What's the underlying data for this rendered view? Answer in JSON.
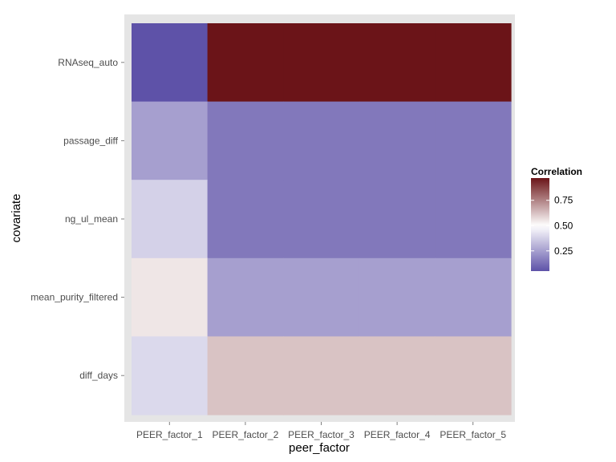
{
  "chart_data": {
    "type": "heatmap",
    "title": "",
    "xlabel": "peer_factor",
    "ylabel": "covariate",
    "x_categories": [
      "PEER_factor_1",
      "PEER_factor_2",
      "PEER_factor_3",
      "PEER_factor_4",
      "PEER_factor_5"
    ],
    "y_categories": [
      "RNAseq_auto",
      "passage_diff",
      "ng_ul_mean",
      "mean_purity_filtered",
      "diff_days"
    ],
    "values": [
      [
        0.05,
        0.97,
        0.97,
        0.97,
        0.97
      ],
      [
        0.25,
        0.15,
        0.15,
        0.15,
        0.15
      ],
      [
        0.38,
        0.15,
        0.15,
        0.15,
        0.15
      ],
      [
        0.55,
        0.25,
        0.25,
        0.25,
        0.25
      ],
      [
        0.4,
        0.62,
        0.62,
        0.62,
        0.62
      ]
    ],
    "legend": {
      "title": "Correlation",
      "ticks": [
        "0.25",
        "0.50",
        "0.75"
      ],
      "tick_values": [
        0.25,
        0.5,
        0.75
      ],
      "range": [
        0.05,
        0.97
      ],
      "placement": "right"
    },
    "color_scale": {
      "low": "#5e52a8",
      "mid": "#ffffff",
      "high": "#6b1418",
      "midpoint": 0.5
    },
    "panel_background": "#e5e5e5",
    "grid": true
  }
}
